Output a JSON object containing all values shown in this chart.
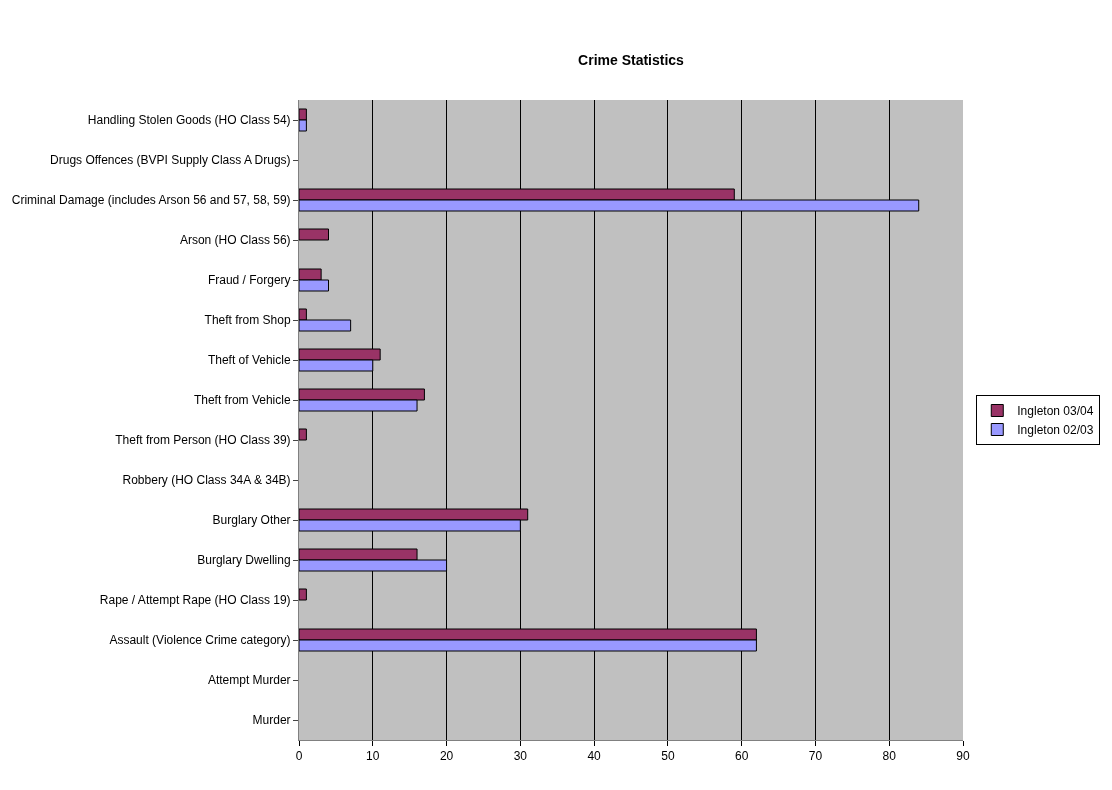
{
  "chart_data": {
    "type": "bar",
    "orientation": "horizontal",
    "title": "Crime Statistics",
    "categories": [
      "Handling Stolen Goods (HO Class 54)",
      "Drugs Offences (BVPI Supply Class A Drugs)",
      "Criminal Damage (includes Arson 56 and 57, 58, 59)",
      "Arson (HO Class 56)",
      "Fraud / Forgery",
      "Theft from Shop",
      "Theft of Vehicle",
      "Theft from Vehicle",
      "Theft from Person (HO Class 39)",
      "Robbery (HO Class 34A & 34B)",
      "Burglary Other",
      "Burglary Dwelling",
      "Rape / Attempt Rape (HO Class 19)",
      "Assault (Violence Crime category)",
      "Attempt Murder",
      "Murder"
    ],
    "series": [
      {
        "name": "Ingleton 03/04",
        "color": "#993366",
        "values": [
          1,
          null,
          59,
          4,
          3,
          1,
          11,
          17,
          1,
          null,
          31,
          16,
          1,
          62,
          null,
          null
        ]
      },
      {
        "name": "Ingleton 02/03",
        "color": "#9999ff",
        "values": [
          1,
          null,
          84,
          null,
          4,
          7,
          10,
          16,
          null,
          null,
          30,
          20,
          null,
          62,
          null,
          null
        ]
      }
    ],
    "xlim": [
      0,
      90
    ],
    "xticks": [
      0,
      10,
      20,
      30,
      40,
      50,
      60,
      70,
      80,
      90
    ],
    "grid": "x",
    "legend": "right"
  }
}
